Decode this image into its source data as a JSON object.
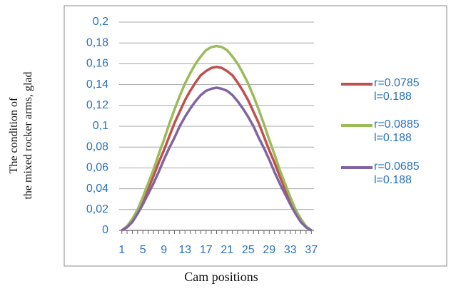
{
  "chart_data": {
    "type": "line",
    "y_label": "The condition of\nthe mixed rocker arms, glad",
    "x_label": "Cam positions",
    "x": [
      1,
      2,
      3,
      4,
      5,
      6,
      7,
      8,
      9,
      10,
      11,
      12,
      13,
      14,
      15,
      16,
      17,
      18,
      19,
      20,
      21,
      22,
      23,
      24,
      25,
      26,
      27,
      28,
      29,
      30,
      31,
      32,
      33,
      34,
      35,
      36,
      37
    ],
    "xlim": [
      0.5,
      37.5
    ],
    "xticks": [
      1,
      5,
      9,
      13,
      17,
      21,
      25,
      29,
      33,
      37
    ],
    "ylim": [
      0,
      0.2
    ],
    "yticks": [
      0,
      {
        "value": 0.02,
        "label": "0,02"
      },
      {
        "value": 0.04,
        "label": "0,04"
      },
      {
        "value": 0.06,
        "label": "0,06"
      },
      {
        "value": 0.08,
        "label": "0,08"
      },
      {
        "value": 0.1,
        "label": "0,1"
      },
      {
        "value": 0.12,
        "label": "0,12"
      },
      {
        "value": 0.14,
        "label": "0,14"
      },
      {
        "value": 0.16,
        "label": "0,16"
      },
      {
        "value": 0.18,
        "label": "0,18"
      },
      {
        "value": 0.2,
        "label": "0,2"
      }
    ],
    "grid": true,
    "legend": "right",
    "series": [
      {
        "name": "r=0.0785\nl=0.188",
        "color": "#c0504d",
        "values": [
          0,
          0.003,
          0.009,
          0.018,
          0.028,
          0.04,
          0.052,
          0.065,
          0.077,
          0.09,
          0.103,
          0.114,
          0.125,
          0.134,
          0.142,
          0.149,
          0.153,
          0.156,
          0.157,
          0.156,
          0.153,
          0.149,
          0.142,
          0.134,
          0.125,
          0.114,
          0.103,
          0.09,
          0.077,
          0.065,
          0.052,
          0.04,
          0.028,
          0.018,
          0.009,
          0.003,
          0
        ]
      },
      {
        "name": "r=0.0885\nl=0.188",
        "color": "#9bbb59",
        "values": [
          0,
          0.004,
          0.011,
          0.02,
          0.032,
          0.045,
          0.058,
          0.073,
          0.087,
          0.102,
          0.116,
          0.129,
          0.141,
          0.151,
          0.16,
          0.167,
          0.173,
          0.176,
          0.177,
          0.176,
          0.173,
          0.167,
          0.16,
          0.151,
          0.141,
          0.129,
          0.116,
          0.102,
          0.087,
          0.073,
          0.058,
          0.045,
          0.032,
          0.02,
          0.011,
          0.004,
          0
        ]
      },
      {
        "name": "r=0.0685\nl=0.188",
        "color": "#8064a2",
        "values": [
          0,
          0.003,
          0.008,
          0.016,
          0.025,
          0.035,
          0.045,
          0.056,
          0.068,
          0.079,
          0.089,
          0.1,
          0.109,
          0.117,
          0.124,
          0.13,
          0.134,
          0.136,
          0.137,
          0.136,
          0.134,
          0.13,
          0.124,
          0.117,
          0.109,
          0.1,
          0.089,
          0.079,
          0.068,
          0.056,
          0.045,
          0.035,
          0.025,
          0.016,
          0.008,
          0.003,
          0
        ]
      }
    ]
  }
}
